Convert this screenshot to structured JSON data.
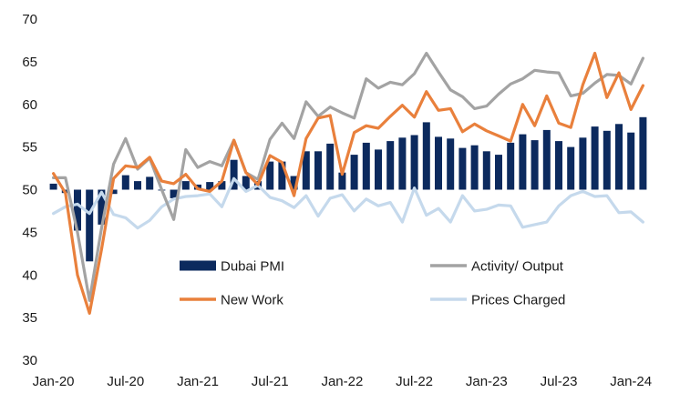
{
  "chart_data": {
    "type": "line",
    "grid": false,
    "ylim": [
      30,
      70
    ],
    "yticks": [
      30,
      35,
      40,
      45,
      50,
      55,
      60,
      65,
      70
    ],
    "bar_baseline": 50,
    "categories": [
      "Jan-20",
      "",
      "",
      "",
      "",
      "",
      "Jul-20",
      "",
      "",
      "",
      "",
      "",
      "Jan-21",
      "",
      "",
      "",
      "",
      "",
      "Jul-21",
      "",
      "",
      "",
      "",
      "",
      "Jan-22",
      "",
      "",
      "",
      "",
      "",
      "Jul-22",
      "",
      "",
      "",
      "",
      "",
      "Jan-23",
      "",
      "",
      "",
      "",
      "",
      "Jul-23",
      "",
      "",
      "",
      "",
      "",
      "Jan-24",
      ""
    ],
    "legend": {
      "position": "inside-bottom"
    },
    "series": [
      {
        "name": "Dubai PMI",
        "type": "bar",
        "color": "#0c2a5e",
        "values": [
          50.7,
          49.6,
          45.2,
          41.6,
          45.9,
          49.5,
          51.7,
          51.0,
          51.5,
          49.9,
          49.0,
          51.0,
          50.6,
          50.9,
          51.0,
          53.5,
          51.6,
          51.0,
          53.3,
          53.3,
          51.6,
          54.5,
          54.5,
          55.4,
          52.0,
          54.1,
          55.5,
          54.7,
          55.7,
          56.1,
          56.4,
          57.9,
          56.2,
          56.0,
          54.9,
          55.2,
          54.5,
          54.1,
          55.5,
          56.5,
          55.8,
          57.0,
          55.7,
          55.0,
          56.1,
          57.4,
          56.9,
          57.7,
          56.7,
          58.5
        ]
      },
      {
        "name": "Activity/ Output",
        "type": "line",
        "color": "#a3a3a3",
        "values": [
          51.4,
          51.4,
          45.0,
          37.0,
          45.5,
          53.0,
          56.0,
          52.4,
          53.7,
          50.0,
          46.5,
          54.7,
          52.6,
          53.3,
          52.8,
          55.8,
          52.0,
          51.2,
          55.9,
          57.8,
          56.0,
          60.3,
          58.6,
          59.7,
          59.0,
          58.4,
          63.0,
          61.9,
          62.6,
          62.3,
          63.6,
          66.0,
          63.8,
          61.7,
          60.9,
          59.5,
          59.8,
          61.2,
          62.4,
          63.0,
          64.0,
          63.8,
          63.7,
          61.0,
          61.3,
          62.5,
          63.5,
          63.4,
          62.4,
          65.4
        ]
      },
      {
        "name": "New Work",
        "type": "line",
        "color": "#e9803c",
        "values": [
          51.9,
          49.6,
          40.0,
          35.5,
          43.0,
          51.3,
          52.8,
          52.6,
          53.8,
          51.0,
          50.7,
          51.8,
          50.1,
          49.8,
          51.0,
          55.8,
          52.0,
          50.6,
          54.0,
          53.2,
          49.3,
          56.0,
          58.4,
          58.7,
          51.8,
          56.7,
          57.5,
          57.2,
          58.6,
          59.9,
          58.5,
          61.5,
          59.3,
          59.5,
          56.8,
          57.7,
          56.9,
          56.3,
          55.7,
          60.0,
          57.5,
          61.0,
          57.8,
          57.3,
          62.3,
          66.0,
          60.8,
          63.7,
          59.4,
          62.2
        ]
      },
      {
        "name": "Prices Charged",
        "type": "line",
        "color": "#c5d9ec",
        "values": [
          47.2,
          48.0,
          48.3,
          47.2,
          49.7,
          47.1,
          46.7,
          45.5,
          46.4,
          48.0,
          48.9,
          49.2,
          49.3,
          49.5,
          48.0,
          51.3,
          49.8,
          50.5,
          49.1,
          48.7,
          47.9,
          49.3,
          46.9,
          49.0,
          49.4,
          47.5,
          48.9,
          48.1,
          48.5,
          46.2,
          50.2,
          47.0,
          47.8,
          46.2,
          49.3,
          47.5,
          47.7,
          48.2,
          48.1,
          45.6,
          45.9,
          46.2,
          48.1,
          49.3,
          49.8,
          49.2,
          49.3,
          47.3,
          47.4,
          46.2
        ]
      }
    ]
  }
}
